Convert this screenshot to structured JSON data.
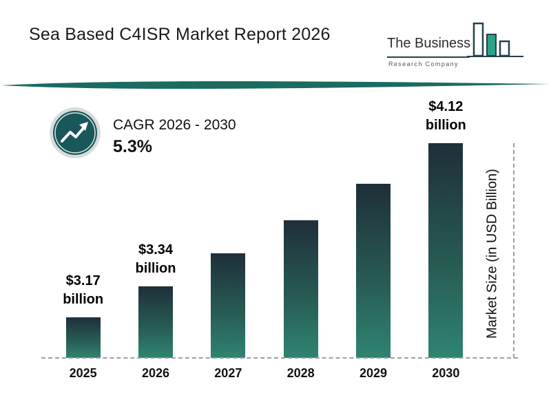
{
  "header": {
    "title": "Sea Based C4ISR Market Report 2026",
    "logo": {
      "name_line1": "The Business",
      "name_line2": "Research Company"
    }
  },
  "cagr": {
    "label": "CAGR 2026 - 2030",
    "value": "5.3%"
  },
  "chart_data": {
    "type": "bar",
    "title": "Sea Based C4ISR Market Report 2026",
    "categories": [
      "2025",
      "2026",
      "2027",
      "2028",
      "2029",
      "2030"
    ],
    "values": [
      3.17,
      3.34,
      3.52,
      3.7,
      3.9,
      4.12
    ],
    "data_labels": [
      "$3.17 billion",
      "$3.34 billion",
      null,
      null,
      null,
      "$4.12 billion"
    ],
    "xlabel": "",
    "ylabel": "Market Size (in USD Billion)",
    "baseline_value": 2.95,
    "ylim": [
      2.95,
      4.12
    ],
    "grid": "dashed baseline and right dashed vertical line",
    "legend": "none",
    "colors": {
      "bar_top": "#1f2f3a",
      "bar_bottom": "#2f8472",
      "accent": "#1b6b60",
      "logo_green": "#2aa387",
      "logo_navy": "#24404d"
    }
  }
}
